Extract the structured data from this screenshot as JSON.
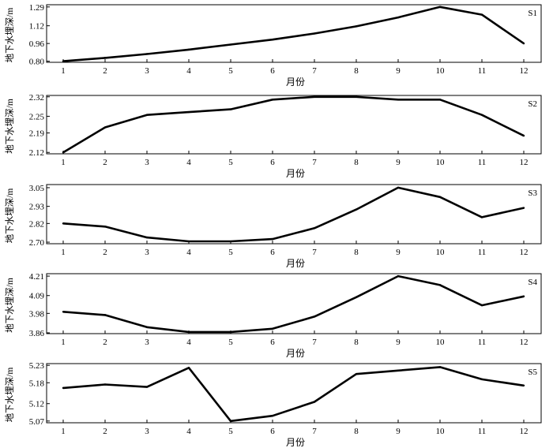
{
  "chart_data": [
    {
      "type": "line",
      "label": "S1",
      "xlabel": "月份",
      "ylabel": "地下水埋深/m",
      "x": [
        1,
        2,
        3,
        4,
        5,
        6,
        7,
        8,
        9,
        10,
        11,
        12
      ],
      "y": [
        0.8,
        0.83,
        0.865,
        0.905,
        0.95,
        0.995,
        1.05,
        1.115,
        1.195,
        1.29,
        1.22,
        0.96
      ],
      "ylim": [
        0.79,
        1.31
      ],
      "yticks": [
        "0.80",
        "0.96",
        "1.12",
        "1.29"
      ],
      "yticks_values": [
        0.8,
        0.96,
        1.12,
        1.29
      ],
      "xticks": [
        "1",
        "2",
        "3",
        "4",
        "5",
        "6",
        "7",
        "8",
        "9",
        "10",
        "11",
        "12"
      ]
    },
    {
      "type": "line",
      "label": "S2",
      "xlabel": "月份",
      "ylabel": "地下水埋深/m",
      "x": [
        1,
        2,
        3,
        4,
        5,
        6,
        7,
        8,
        9,
        10,
        11,
        12
      ],
      "y": [
        2.12,
        2.21,
        2.255,
        2.265,
        2.275,
        2.31,
        2.32,
        2.32,
        2.31,
        2.31,
        2.255,
        2.18
      ],
      "ylim": [
        2.115,
        2.325
      ],
      "yticks": [
        "2.12",
        "2.19",
        "2.25",
        "2.32"
      ],
      "yticks_values": [
        2.12,
        2.19,
        2.25,
        2.32
      ],
      "xticks": [
        "1",
        "2",
        "3",
        "4",
        "5",
        "6",
        "7",
        "8",
        "9",
        "10",
        "11",
        "12"
      ]
    },
    {
      "type": "line",
      "label": "S3",
      "xlabel": "月份",
      "ylabel": "地下水埋深/m",
      "x": [
        1,
        2,
        3,
        4,
        5,
        6,
        7,
        8,
        9,
        10,
        11,
        12
      ],
      "y": [
        2.82,
        2.8,
        2.73,
        2.705,
        2.705,
        2.72,
        2.79,
        2.91,
        3.05,
        2.99,
        2.86,
        2.92
      ],
      "ylim": [
        2.69,
        3.07
      ],
      "yticks": [
        "2.70",
        "2.82",
        "2.93",
        "3.05"
      ],
      "yticks_values": [
        2.7,
        2.82,
        2.93,
        3.05
      ],
      "xticks": [
        "1",
        "2",
        "3",
        "4",
        "5",
        "6",
        "7",
        "8",
        "9",
        "10",
        "11",
        "12"
      ]
    },
    {
      "type": "line",
      "label": "S4",
      "xlabel": "月份",
      "ylabel": "地下水埋深/m",
      "x": [
        1,
        2,
        3,
        4,
        5,
        6,
        7,
        8,
        9,
        10,
        11,
        12
      ],
      "y": [
        3.99,
        3.97,
        3.895,
        3.865,
        3.865,
        3.885,
        3.96,
        4.08,
        4.21,
        4.155,
        4.03,
        4.085
      ],
      "ylim": [
        3.855,
        4.225
      ],
      "yticks": [
        "3.86",
        "3.98",
        "4.09",
        "4.21"
      ],
      "yticks_values": [
        3.86,
        3.98,
        4.09,
        4.21
      ],
      "xticks": [
        "1",
        "2",
        "3",
        "4",
        "5",
        "6",
        "7",
        "8",
        "9",
        "10",
        "11",
        "12"
      ]
    },
    {
      "type": "line",
      "label": "S5",
      "xlabel": "月份",
      "ylabel": "地下水埋深/m",
      "x": [
        1,
        2,
        3,
        4,
        5,
        6,
        7,
        8,
        9,
        10,
        11,
        12
      ],
      "y": [
        5.165,
        5.175,
        5.168,
        5.223,
        5.07,
        5.085,
        5.125,
        5.205,
        5.215,
        5.225,
        5.19,
        5.172
      ],
      "ylim": [
        5.065,
        5.235
      ],
      "yticks": [
        "5.07",
        "5.12",
        "5.18",
        "5.23"
      ],
      "yticks_values": [
        5.07,
        5.12,
        5.18,
        5.23
      ],
      "xticks": [
        "1",
        "2",
        "3",
        "4",
        "5",
        "6",
        "7",
        "8",
        "9",
        "10",
        "11",
        "12"
      ]
    }
  ]
}
